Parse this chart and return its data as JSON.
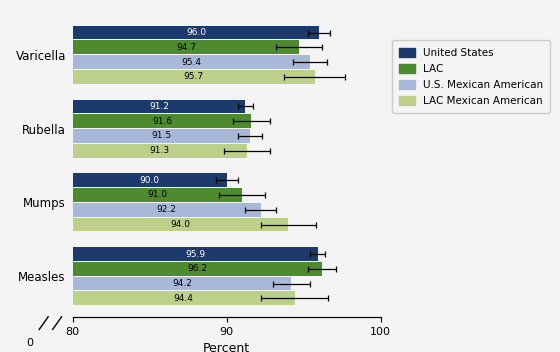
{
  "categories": [
    "Varicella",
    "Rubella",
    "Mumps",
    "Measles"
  ],
  "series": {
    "United States": [
      96.0,
      91.2,
      90.0,
      95.9
    ],
    "LAC": [
      94.7,
      91.6,
      91.0,
      96.2
    ],
    "U.S. Mexican American": [
      95.4,
      91.5,
      92.2,
      94.2
    ],
    "LAC Mexican American": [
      95.7,
      91.3,
      94.0,
      94.4
    ]
  },
  "errors": {
    "United States": [
      0.7,
      0.5,
      0.7,
      0.5
    ],
    "LAC": [
      1.5,
      1.2,
      1.5,
      0.9
    ],
    "U.S. Mexican American": [
      1.1,
      0.8,
      1.0,
      1.2
    ],
    "LAC Mexican American": [
      2.0,
      1.5,
      1.8,
      2.2
    ]
  },
  "colors": {
    "United States": "#1c3a6b",
    "LAC": "#4e8a2e",
    "U.S. Mexican American": "#a8b8d8",
    "LAC Mexican American": "#bdd08a"
  },
  "xlabel": "Percent",
  "bar_height": 0.2,
  "figsize": [
    5.6,
    3.52
  ],
  "dpi": 100,
  "background_color": "#f4f4f4",
  "legend_order": [
    "United States",
    "LAC",
    "U.S. Mexican American",
    "LAC Mexican American"
  ]
}
